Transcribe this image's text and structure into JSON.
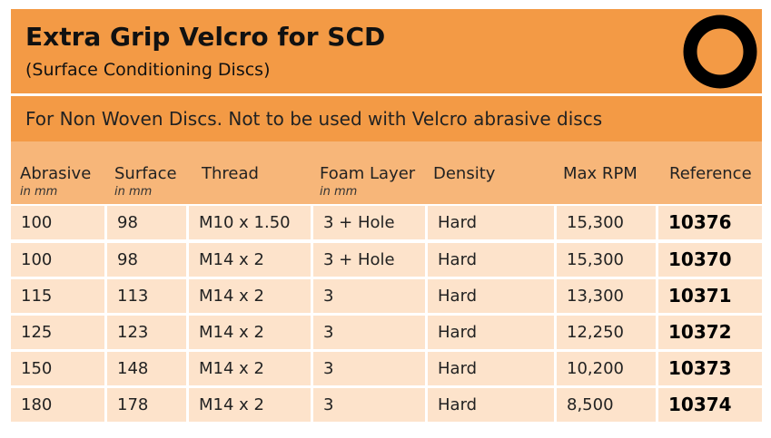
{
  "header": {
    "title": "Extra Grip Velcro for SCD",
    "subtitle": "(Surface Conditioning Discs)"
  },
  "note": "For Non Woven Discs. Not to be used with Velcro abrasive discs",
  "table": {
    "columns": [
      {
        "label": "Abrasive",
        "unit": "in mm"
      },
      {
        "label": "Surface",
        "unit": "in mm"
      },
      {
        "label": "Thread"
      },
      {
        "label": "Foam Layer",
        "unit": "in mm"
      },
      {
        "label": "Density"
      },
      {
        "label": "Max RPM"
      },
      {
        "label": "Reference"
      }
    ],
    "rows": [
      [
        "100",
        "98",
        "M10 x 1.50",
        "3 + Hole",
        "Hard",
        "15,300",
        "10376"
      ],
      [
        "100",
        "98",
        "M14 x 2",
        "3 + Hole",
        "Hard",
        "15,300",
        "10370"
      ],
      [
        "115",
        "113",
        "M14 x 2",
        "3",
        "Hard",
        "13,300",
        "10371"
      ],
      [
        "125",
        "123",
        "M14 x 2",
        "3",
        "Hard",
        "12,250",
        "10372"
      ],
      [
        "150",
        "148",
        "M14 x 2",
        "3",
        "Hard",
        "10,200",
        "10373"
      ],
      [
        "180",
        "178",
        "M14 x 2",
        "3",
        "Hard",
        "8,500",
        "10374"
      ]
    ]
  }
}
